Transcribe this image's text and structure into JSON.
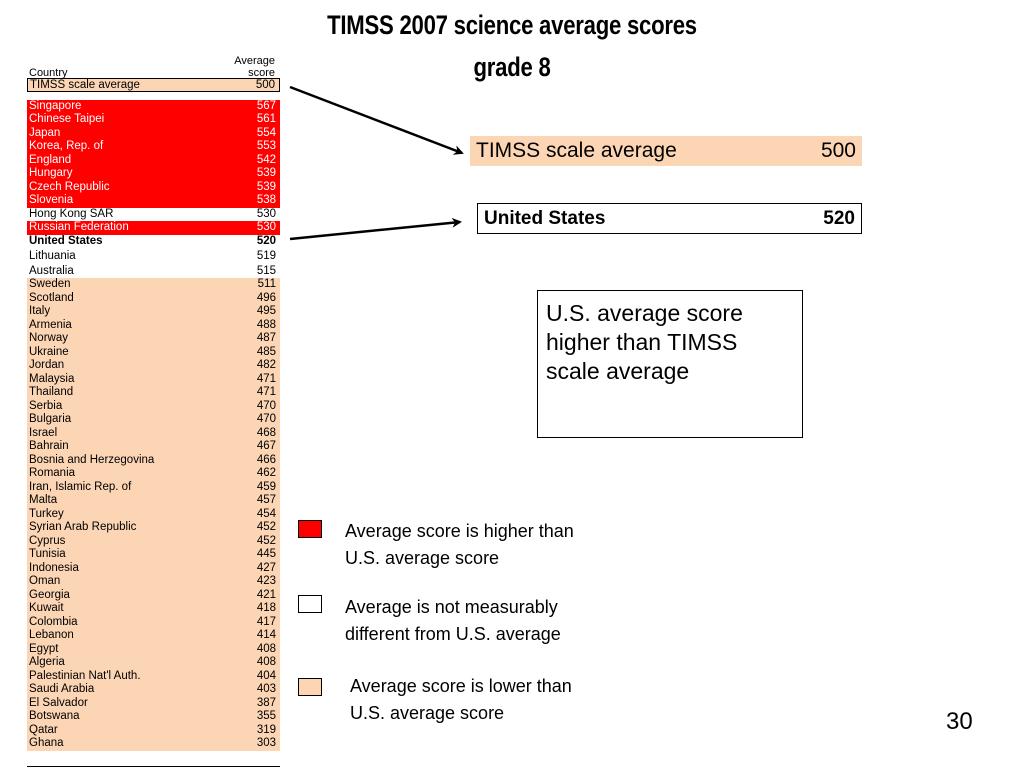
{
  "title": {
    "line1": "TIMSS 2007 science average scores",
    "line2": "grade 8"
  },
  "table": {
    "header_country": "Country",
    "header_score_line1": "Average",
    "header_score_line2": "score",
    "rows": [
      {
        "country": "TIMSS scale average",
        "score": "500",
        "style": "peach"
      },
      {
        "country": "Singapore",
        "score": "567",
        "style": "red"
      },
      {
        "country": "Chinese Taipei",
        "score": "561",
        "style": "red"
      },
      {
        "country": "Japan",
        "score": "554",
        "style": "red"
      },
      {
        "country": "Korea, Rep. of",
        "score": "553",
        "style": "red"
      },
      {
        "country": "England",
        "score": "542",
        "style": "red"
      },
      {
        "country": "Hungary",
        "score": "539",
        "style": "red"
      },
      {
        "country": "Czech Republic",
        "score": "539",
        "style": "red"
      },
      {
        "country": "Slovenia",
        "score": "538",
        "style": "red"
      },
      {
        "country": "Hong Kong SAR",
        "score": "530",
        "style": "white"
      },
      {
        "country": "Russian Federation",
        "score": "530",
        "style": "red"
      },
      {
        "country": "United States",
        "score": "520",
        "style": "white"
      },
      {
        "country": "Lithuania",
        "score": "519",
        "style": "white"
      },
      {
        "country": "Australia",
        "score": "515",
        "style": "white"
      },
      {
        "country": "Sweden",
        "score": "511",
        "style": "peach"
      },
      {
        "country": "Scotland",
        "score": "496",
        "style": "peach"
      },
      {
        "country": "Italy",
        "score": "495",
        "style": "peach"
      },
      {
        "country": "Armenia",
        "score": "488",
        "style": "peach"
      },
      {
        "country": "Norway",
        "score": "487",
        "style": "peach"
      },
      {
        "country": "Ukraine",
        "score": "485",
        "style": "peach"
      },
      {
        "country": "Jordan",
        "score": "482",
        "style": "peach"
      },
      {
        "country": "Malaysia",
        "score": "471",
        "style": "peach"
      },
      {
        "country": "Thailand",
        "score": "471",
        "style": "peach"
      },
      {
        "country": "Serbia",
        "score": "470",
        "style": "peach"
      },
      {
        "country": "Bulgaria",
        "score": "470",
        "style": "peach"
      },
      {
        "country": "Israel",
        "score": "468",
        "style": "peach"
      },
      {
        "country": "Bahrain",
        "score": "467",
        "style": "peach"
      },
      {
        "country": "Bosnia and Herzegovina",
        "score": "466",
        "style": "peach"
      },
      {
        "country": "Romania",
        "score": "462",
        "style": "peach"
      },
      {
        "country": "Iran, Islamic Rep. of",
        "score": "459",
        "style": "peach"
      },
      {
        "country": "Malta",
        "score": "457",
        "style": "peach"
      },
      {
        "country": "Turkey",
        "score": "454",
        "style": "peach"
      },
      {
        "country": "Syrian Arab Republic",
        "score": "452",
        "style": "peach"
      },
      {
        "country": "Cyprus",
        "score": "452",
        "style": "peach"
      },
      {
        "country": "Tunisia",
        "score": "445",
        "style": "peach"
      },
      {
        "country": "Indonesia",
        "score": "427",
        "style": "peach"
      },
      {
        "country": "Oman",
        "score": "423",
        "style": "peach"
      },
      {
        "country": "Georgia",
        "score": "421",
        "style": "peach"
      },
      {
        "country": "Kuwait",
        "score": "418",
        "style": "peach"
      },
      {
        "country": "Colombia",
        "score": "417",
        "style": "peach"
      },
      {
        "country": "Lebanon",
        "score": "414",
        "style": "peach"
      },
      {
        "country": "Egypt",
        "score": "408",
        "style": "peach"
      },
      {
        "country": "Algeria",
        "score": "408",
        "style": "peach"
      },
      {
        "country": "Palestinian Nat'l Auth.",
        "score": "404",
        "style": "peach"
      },
      {
        "country": "Saudi Arabia",
        "score": "403",
        "style": "peach"
      },
      {
        "country": "El Salvador",
        "score": "387",
        "style": "peach"
      },
      {
        "country": "Botswana",
        "score": "355",
        "style": "peach"
      },
      {
        "country": "Qatar",
        "score": "319",
        "style": "peach"
      },
      {
        "country": "Ghana",
        "score": "303",
        "style": "peach"
      }
    ]
  },
  "callouts": {
    "timss_label": "TIMSS scale average",
    "timss_score": "500",
    "us_label": "United States",
    "us_score": "520"
  },
  "note": {
    "text": "U.S. average score higher than TIMSS scale average"
  },
  "legend": {
    "higher_line1": "Average score is higher than",
    "higher_line2": "U.S. average score",
    "same_line1": "Average is not measurably",
    "same_line2": "different from U.S. average",
    "lower_line1": "Average score is lower than",
    "lower_line2": "U.S. average score"
  },
  "colors": {
    "higher": "#ff0000",
    "same": "#ffffff",
    "lower": "#fcd5b4"
  },
  "page_number": "30"
}
